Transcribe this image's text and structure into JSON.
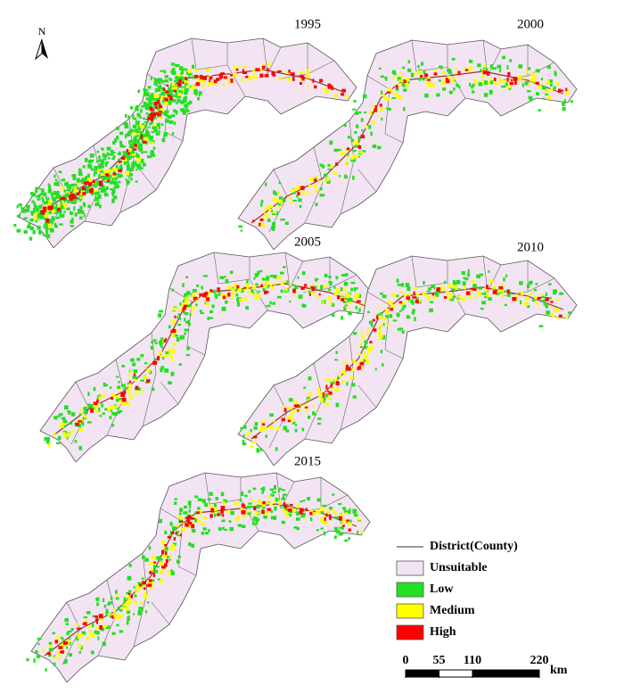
{
  "north": "N",
  "maps": [
    {
      "year": "1995"
    },
    {
      "year": "2000"
    },
    {
      "year": "2005"
    },
    {
      "year": "2010"
    },
    {
      "year": "2015"
    }
  ],
  "legend": {
    "boundary": "District(County)",
    "items": [
      {
        "label": "Unsuitable",
        "color": "#f3e4f3"
      },
      {
        "label": "Low",
        "color": "#22e022"
      },
      {
        "label": "Medium",
        "color": "#ffff00"
      },
      {
        "label": "High",
        "color": "#ff0000"
      }
    ]
  },
  "scale_bar": {
    "ticks": [
      0,
      55,
      110,
      220
    ],
    "unit": "km"
  }
}
